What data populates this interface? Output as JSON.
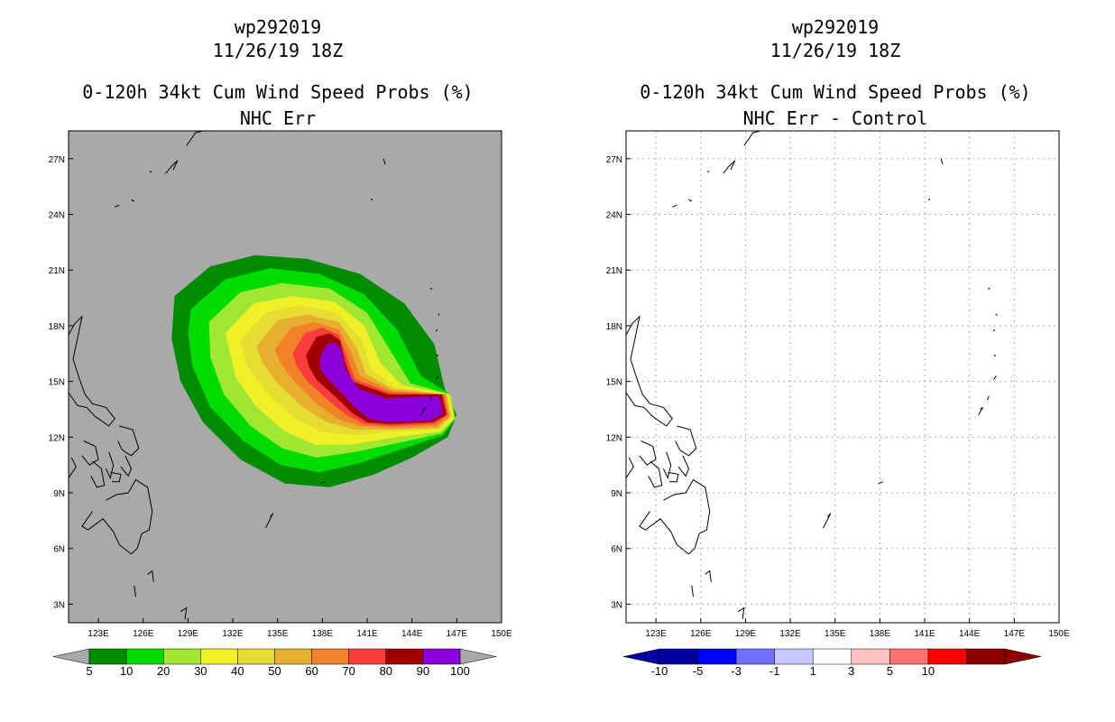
{
  "left_panel": {
    "storm_id": "wp292019",
    "datetime": "11/26/19 18Z",
    "product": "0-120h 34kt Cum Wind Speed Probs (%)",
    "subtitle": "NHC Err",
    "background_color": "#a9a9a9",
    "colorbar": {
      "colors": [
        "#008c00",
        "#00dc00",
        "#a0e632",
        "#f0f028",
        "#e6dc32",
        "#e6af2d",
        "#f08228",
        "#fa3c3c",
        "#a00000",
        "#8c00dc"
      ],
      "labels": [
        "5",
        "10",
        "20",
        "30",
        "40",
        "50",
        "60",
        "70",
        "80",
        "90",
        "100"
      ]
    }
  },
  "right_panel": {
    "storm_id": "wp292019",
    "datetime": "11/26/19 18Z",
    "product": "0-120h 34kt Cum Wind Speed Probs (%)",
    "subtitle": "NHC Err - Control",
    "background_color": "#ffffff",
    "colorbar": {
      "colors": [
        "#0000a0",
        "#0000ff",
        "#7070ff",
        "#c8c8ff",
        "#ffffff",
        "#ffc0c0",
        "#ff7070",
        "#ff0000",
        "#8c0000"
      ],
      "labels": [
        "-10",
        "-5",
        "-3",
        "-1",
        "1",
        "3",
        "5",
        "10"
      ]
    }
  },
  "axes": {
    "lon_labels": [
      "123E",
      "126E",
      "129E",
      "132E",
      "135E",
      "138E",
      "141E",
      "144E",
      "147E",
      "150E"
    ],
    "lat_labels": [
      "27N",
      "24N",
      "21N",
      "18N",
      "15N",
      "12N",
      "9N",
      "6N",
      "3N"
    ],
    "lon_range": [
      121.0,
      150.0
    ],
    "lat_range": [
      2.0,
      28.5
    ]
  },
  "chart_data": {
    "type": "heatmap",
    "title": "0-120h 34kt Cum Wind Speed Probs (%)",
    "contour_levels": [
      5,
      10,
      20,
      30,
      40,
      50,
      60,
      70,
      80,
      90,
      100
    ],
    "max_probability_region": {
      "lon": [
        138,
        147
      ],
      "lat": [
        11.5,
        16.5
      ]
    }
  }
}
